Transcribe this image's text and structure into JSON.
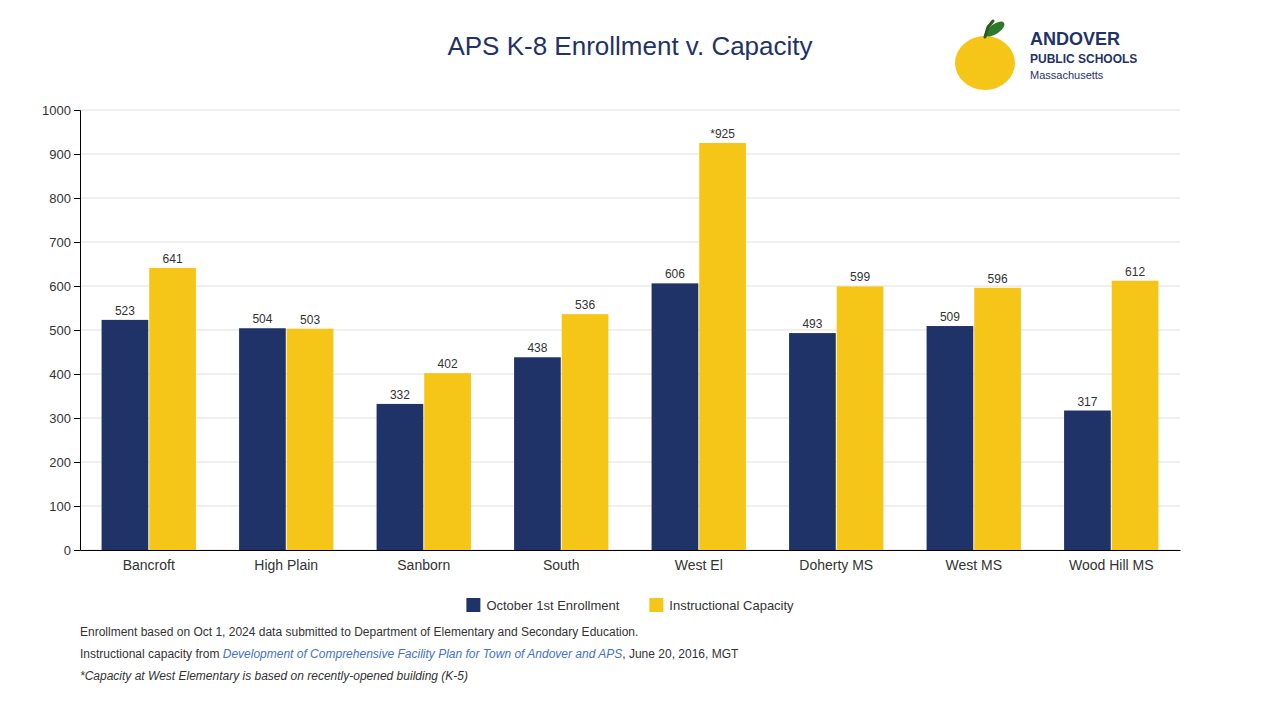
{
  "chart_data": {
    "type": "bar",
    "title": "APS K-8 Enrollment v. Capacity",
    "categories": [
      "Bancroft",
      "High Plain",
      "Sanborn",
      "South",
      "West El",
      "Doherty MS",
      "West MS",
      "Wood Hill MS"
    ],
    "series": [
      {
        "name": "October 1st Enrollment",
        "color": "#1F3368",
        "values": [
          523,
          504,
          332,
          438,
          606,
          493,
          509,
          317
        ]
      },
      {
        "name": "Instructional Capacity",
        "color": "#F5C518",
        "values": [
          641,
          503,
          402,
          536,
          925,
          599,
          596,
          612
        ],
        "value_labels": [
          "641",
          "503",
          "402",
          "536",
          "*925",
          "599",
          "596",
          "612"
        ]
      }
    ],
    "ylim": [
      0,
      1000
    ],
    "yticks": [
      0,
      100,
      200,
      300,
      400,
      500,
      600,
      700,
      800,
      900,
      1000
    ],
    "grid": true,
    "legend": "bottom",
    "data_labels": true,
    "annotations": [
      "Enrollment based on Oct 1, 2024 data submitted to Department of Elementary and Secondary Education.",
      "Instructional capacity from ",
      "Development of Comprehensive Facility Plan for Town of Andover and APS",
      ", June 20, 2016, MGT",
      "*Capacity at West Elementary is based on recently-opened building (K-5)",
      "ANDOVER",
      "PUBLIC SCHOOLS",
      "Massachusetts"
    ]
  }
}
